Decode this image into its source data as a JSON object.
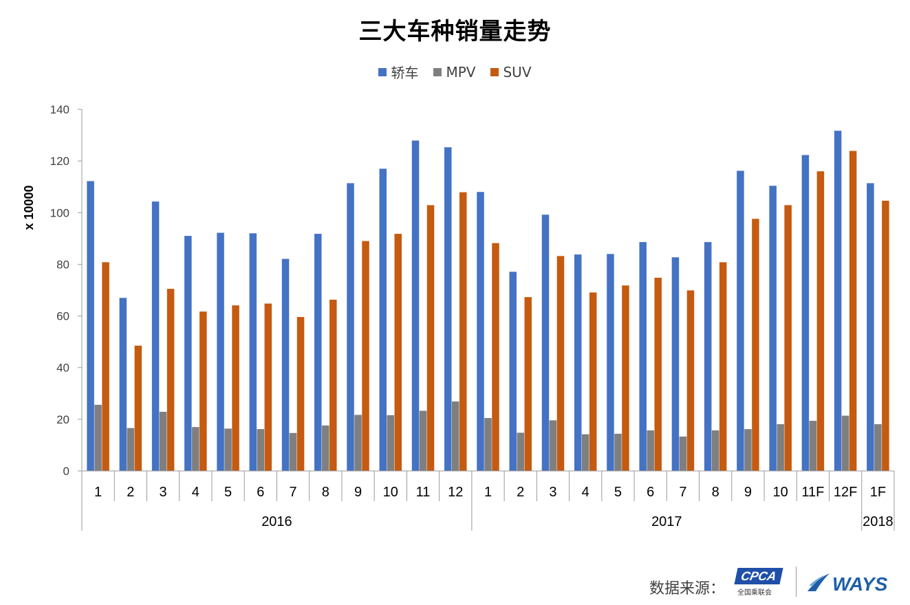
{
  "chart_data": {
    "type": "bar",
    "title": "三大车种销量走势",
    "ylabel": "x 10000",
    "xlabel": "",
    "ylim": [
      0,
      140
    ],
    "yticks": [
      0,
      20,
      40,
      60,
      80,
      100,
      120,
      140
    ],
    "grid": false,
    "legend_position": "top",
    "categories": [
      "1",
      "2",
      "3",
      "4",
      "5",
      "6",
      "7",
      "8",
      "9",
      "10",
      "11",
      "12",
      "1",
      "2",
      "3",
      "4",
      "5",
      "6",
      "7",
      "8",
      "9",
      "10",
      "11F",
      "12F",
      "1F"
    ],
    "year_groups": [
      {
        "label": "2016",
        "count": 12
      },
      {
        "label": "2017",
        "count": 12
      },
      {
        "label": "2018",
        "count": 1
      }
    ],
    "series": [
      {
        "name": "轿车",
        "color": "#4472c4",
        "values": [
          112.2,
          67.0,
          104.3,
          91.0,
          92.2,
          92.0,
          82.1,
          91.8,
          111.4,
          117.0,
          127.9,
          125.3,
          108.0,
          77.1,
          99.2,
          83.8,
          84.0,
          88.6,
          82.7,
          88.6,
          116.2,
          110.4,
          122.3,
          131.7,
          111.4
        ]
      },
      {
        "name": "MPV",
        "color": "#7f7f7f",
        "values": [
          25.6,
          16.6,
          22.9,
          17.0,
          16.4,
          16.2,
          14.7,
          17.6,
          21.7,
          21.6,
          23.3,
          26.9,
          20.5,
          14.8,
          19.6,
          14.2,
          14.4,
          15.7,
          13.3,
          15.7,
          16.2,
          18.1,
          19.4,
          21.4,
          18.1
        ]
      },
      {
        "name": "SUV",
        "color": "#c55a11",
        "values": [
          80.8,
          48.5,
          70.5,
          61.7,
          64.1,
          64.8,
          59.6,
          66.3,
          89.0,
          91.8,
          102.9,
          107.9,
          88.2,
          67.3,
          83.2,
          69.1,
          71.8,
          74.8,
          69.9,
          80.8,
          97.6,
          102.9,
          116.0,
          123.9,
          104.6
        ]
      }
    ]
  },
  "footer": {
    "source_label": "数据来源：",
    "cpca_logo_text": "CPCA",
    "cpca_logo_subtext": "全国乘联会",
    "ways_logo_text": "WAYS"
  }
}
